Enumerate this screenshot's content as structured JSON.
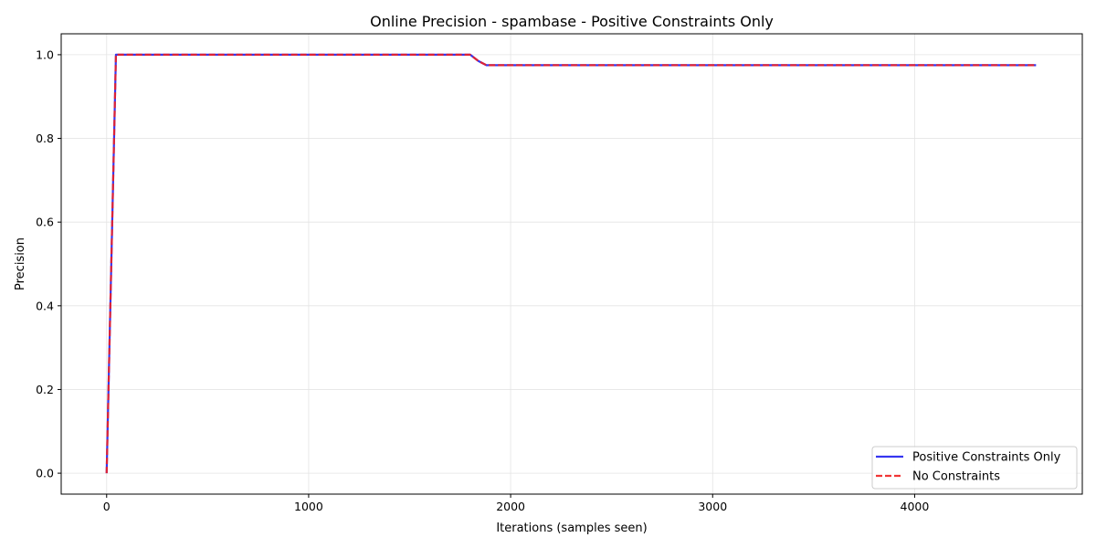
{
  "chart_data": {
    "type": "line",
    "title": "Online Precision - spambase - Positive Constraints Only",
    "xlabel": "Iterations (samples seen)",
    "ylabel": "Precision",
    "xlim": [
      -225,
      4830
    ],
    "ylim": [
      -0.05,
      1.05
    ],
    "xticks": [
      0,
      1000,
      2000,
      3000,
      4000
    ],
    "yticks": [
      0.0,
      0.2,
      0.4,
      0.6,
      0.8,
      1.0
    ],
    "xtick_labels": [
      "0",
      "1000",
      "2000",
      "3000",
      "4000"
    ],
    "ytick_labels": [
      "0.0",
      "0.2",
      "0.4",
      "0.6",
      "0.8",
      "1.0"
    ],
    "grid": true,
    "legend_position": "lower-right",
    "series": [
      {
        "name": "Positive Constraints Only",
        "color": "#2020ee",
        "style": "solid",
        "x": [
          0,
          46,
          1800,
          1840,
          1880,
          4601
        ],
        "y": [
          0.0,
          1.0,
          1.0,
          0.985,
          0.975,
          0.975
        ]
      },
      {
        "name": "No Constraints",
        "color": "#ee2020",
        "style": "dashed",
        "x": [
          0,
          46,
          1800,
          1840,
          1880,
          4601
        ],
        "y": [
          0.0,
          1.0,
          1.0,
          0.985,
          0.975,
          0.975
        ]
      }
    ]
  }
}
